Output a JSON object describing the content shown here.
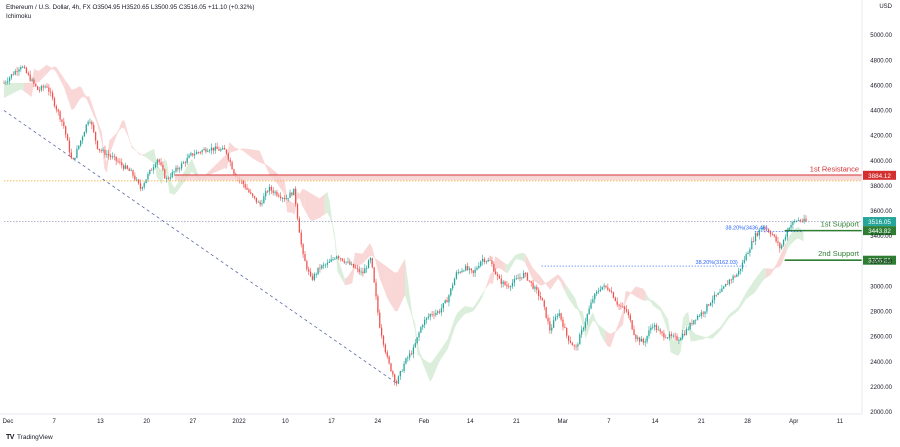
{
  "header": {
    "symbol_line": "Ethereum / U.S. Dollar, 4h, FX  O3504.95  H3520.65  L3500.95  C3516.05  +11.10 (+0.32%)",
    "indicator": "Ichimoku"
  },
  "currency_label": "USD",
  "footer": {
    "brand": "TradingView"
  },
  "colors": {
    "up": "#26a69a",
    "down": "#ef5350",
    "resistance": "#d32f2f",
    "support": "#2e7d32",
    "fib": "#2962ff",
    "cloud_bear": "#f8c9c9",
    "cloud_bull": "#cfe8cf",
    "price_line": "#5d6b99"
  },
  "chart_data": {
    "type": "candlestick",
    "ylim": [
      2000,
      5200
    ],
    "y_ticks": [
      "5000.00",
      "4800.00",
      "4600.00",
      "4400.00",
      "4200.00",
      "4000.00",
      "3800.00",
      "3600.00",
      "3400.00",
      "3200.00",
      "3000.00",
      "2800.00",
      "2600.00",
      "2400.00",
      "2200.00",
      "2000.00"
    ],
    "x_tick_labels": [
      "Dec",
      "7",
      "13",
      "20",
      "27",
      "2022",
      "10",
      "17",
      "24",
      "Feb",
      "14",
      "21",
      "Mar",
      "7",
      "14",
      "21",
      "28",
      "Apr",
      "11"
    ],
    "price_path": [
      {
        "x": 0,
        "y": 4620
      },
      {
        "x": 2,
        "y": 4760
      },
      {
        "x": 4,
        "y": 4560
      },
      {
        "x": 5,
        "y": 4600
      },
      {
        "x": 7,
        "y": 4280
      },
      {
        "x": 8,
        "y": 3980
      },
      {
        "x": 10,
        "y": 4350
      },
      {
        "x": 11,
        "y": 4100
      },
      {
        "x": 13,
        "y": 4010
      },
      {
        "x": 15,
        "y": 3900
      },
      {
        "x": 16,
        "y": 3780
      },
      {
        "x": 18,
        "y": 4020
      },
      {
        "x": 19,
        "y": 3850
      },
      {
        "x": 21,
        "y": 3980
      },
      {
        "x": 22,
        "y": 4050
      },
      {
        "x": 24,
        "y": 4100
      },
      {
        "x": 26,
        "y": 4080
      },
      {
        "x": 27,
        "y": 3900
      },
      {
        "x": 28,
        "y": 3820
      },
      {
        "x": 29,
        "y": 3720
      },
      {
        "x": 30,
        "y": 3650
      },
      {
        "x": 31,
        "y": 3780
      },
      {
        "x": 33,
        "y": 3700
      },
      {
        "x": 34,
        "y": 3760
      },
      {
        "x": 35,
        "y": 3250
      },
      {
        "x": 36,
        "y": 3050
      },
      {
        "x": 37,
        "y": 3150
      },
      {
        "x": 38,
        "y": 3180
      },
      {
        "x": 39,
        "y": 3250
      },
      {
        "x": 40,
        "y": 3200
      },
      {
        "x": 41,
        "y": 3150
      },
      {
        "x": 42,
        "y": 3100
      },
      {
        "x": 43,
        "y": 3220
      },
      {
        "x": 44,
        "y": 2700
      },
      {
        "x": 45,
        "y": 2400
      },
      {
        "x": 46,
        "y": 2230
      },
      {
        "x": 47,
        "y": 2400
      },
      {
        "x": 48,
        "y": 2500
      },
      {
        "x": 49,
        "y": 2700
      },
      {
        "x": 50,
        "y": 2780
      },
      {
        "x": 51,
        "y": 2800
      },
      {
        "x": 52,
        "y": 2900
      },
      {
        "x": 53,
        "y": 3100
      },
      {
        "x": 54,
        "y": 3150
      },
      {
        "x": 55,
        "y": 3100
      },
      {
        "x": 56,
        "y": 3220
      },
      {
        "x": 57,
        "y": 3200
      },
      {
        "x": 58,
        "y": 3050
      },
      {
        "x": 59,
        "y": 3000
      },
      {
        "x": 60,
        "y": 3050
      },
      {
        "x": 61,
        "y": 3100
      },
      {
        "x": 62,
        "y": 3000
      },
      {
        "x": 63,
        "y": 2900
      },
      {
        "x": 64,
        "y": 2650
      },
      {
        "x": 65,
        "y": 2800
      },
      {
        "x": 66,
        "y": 2600
      },
      {
        "x": 67,
        "y": 2500
      },
      {
        "x": 68,
        "y": 2700
      },
      {
        "x": 69,
        "y": 2900
      },
      {
        "x": 70,
        "y": 3000
      },
      {
        "x": 71,
        "y": 2980
      },
      {
        "x": 72,
        "y": 2850
      },
      {
        "x": 73,
        "y": 2800
      },
      {
        "x": 74,
        "y": 2600
      },
      {
        "x": 75,
        "y": 2550
      },
      {
        "x": 76,
        "y": 2700
      },
      {
        "x": 77,
        "y": 2620
      },
      {
        "x": 78,
        "y": 2600
      },
      {
        "x": 79,
        "y": 2580
      },
      {
        "x": 80,
        "y": 2650
      },
      {
        "x": 81,
        "y": 2750
      },
      {
        "x": 82,
        "y": 2800
      },
      {
        "x": 83,
        "y": 2900
      },
      {
        "x": 84,
        "y": 2950
      },
      {
        "x": 85,
        "y": 3050
      },
      {
        "x": 86,
        "y": 3100
      },
      {
        "x": 87,
        "y": 3250
      },
      {
        "x": 88,
        "y": 3400
      },
      {
        "x": 89,
        "y": 3480
      },
      {
        "x": 90,
        "y": 3420
      },
      {
        "x": 91,
        "y": 3300
      },
      {
        "x": 92,
        "y": 3480
      },
      {
        "x": 93,
        "y": 3530
      },
      {
        "x": 94,
        "y": 3516
      }
    ],
    "levels": [
      {
        "name": "1st Resistance",
        "value": 3884.12,
        "label": "3884.12"
      },
      {
        "name": "1st Support",
        "value": 3443.82,
        "label": "3443.82"
      },
      {
        "name": "2nd Support",
        "value": 3208.21,
        "label": "3208.21"
      }
    ],
    "current_price": {
      "value": 3516.05,
      "label": "3516.05"
    },
    "fib_annotations": [
      {
        "text": "38.20%(3436.46)",
        "value": 3436.46
      },
      {
        "text": "38.20%(3162.03)",
        "value": 3162.03
      }
    ],
    "resistance_dotted": 3840
  }
}
